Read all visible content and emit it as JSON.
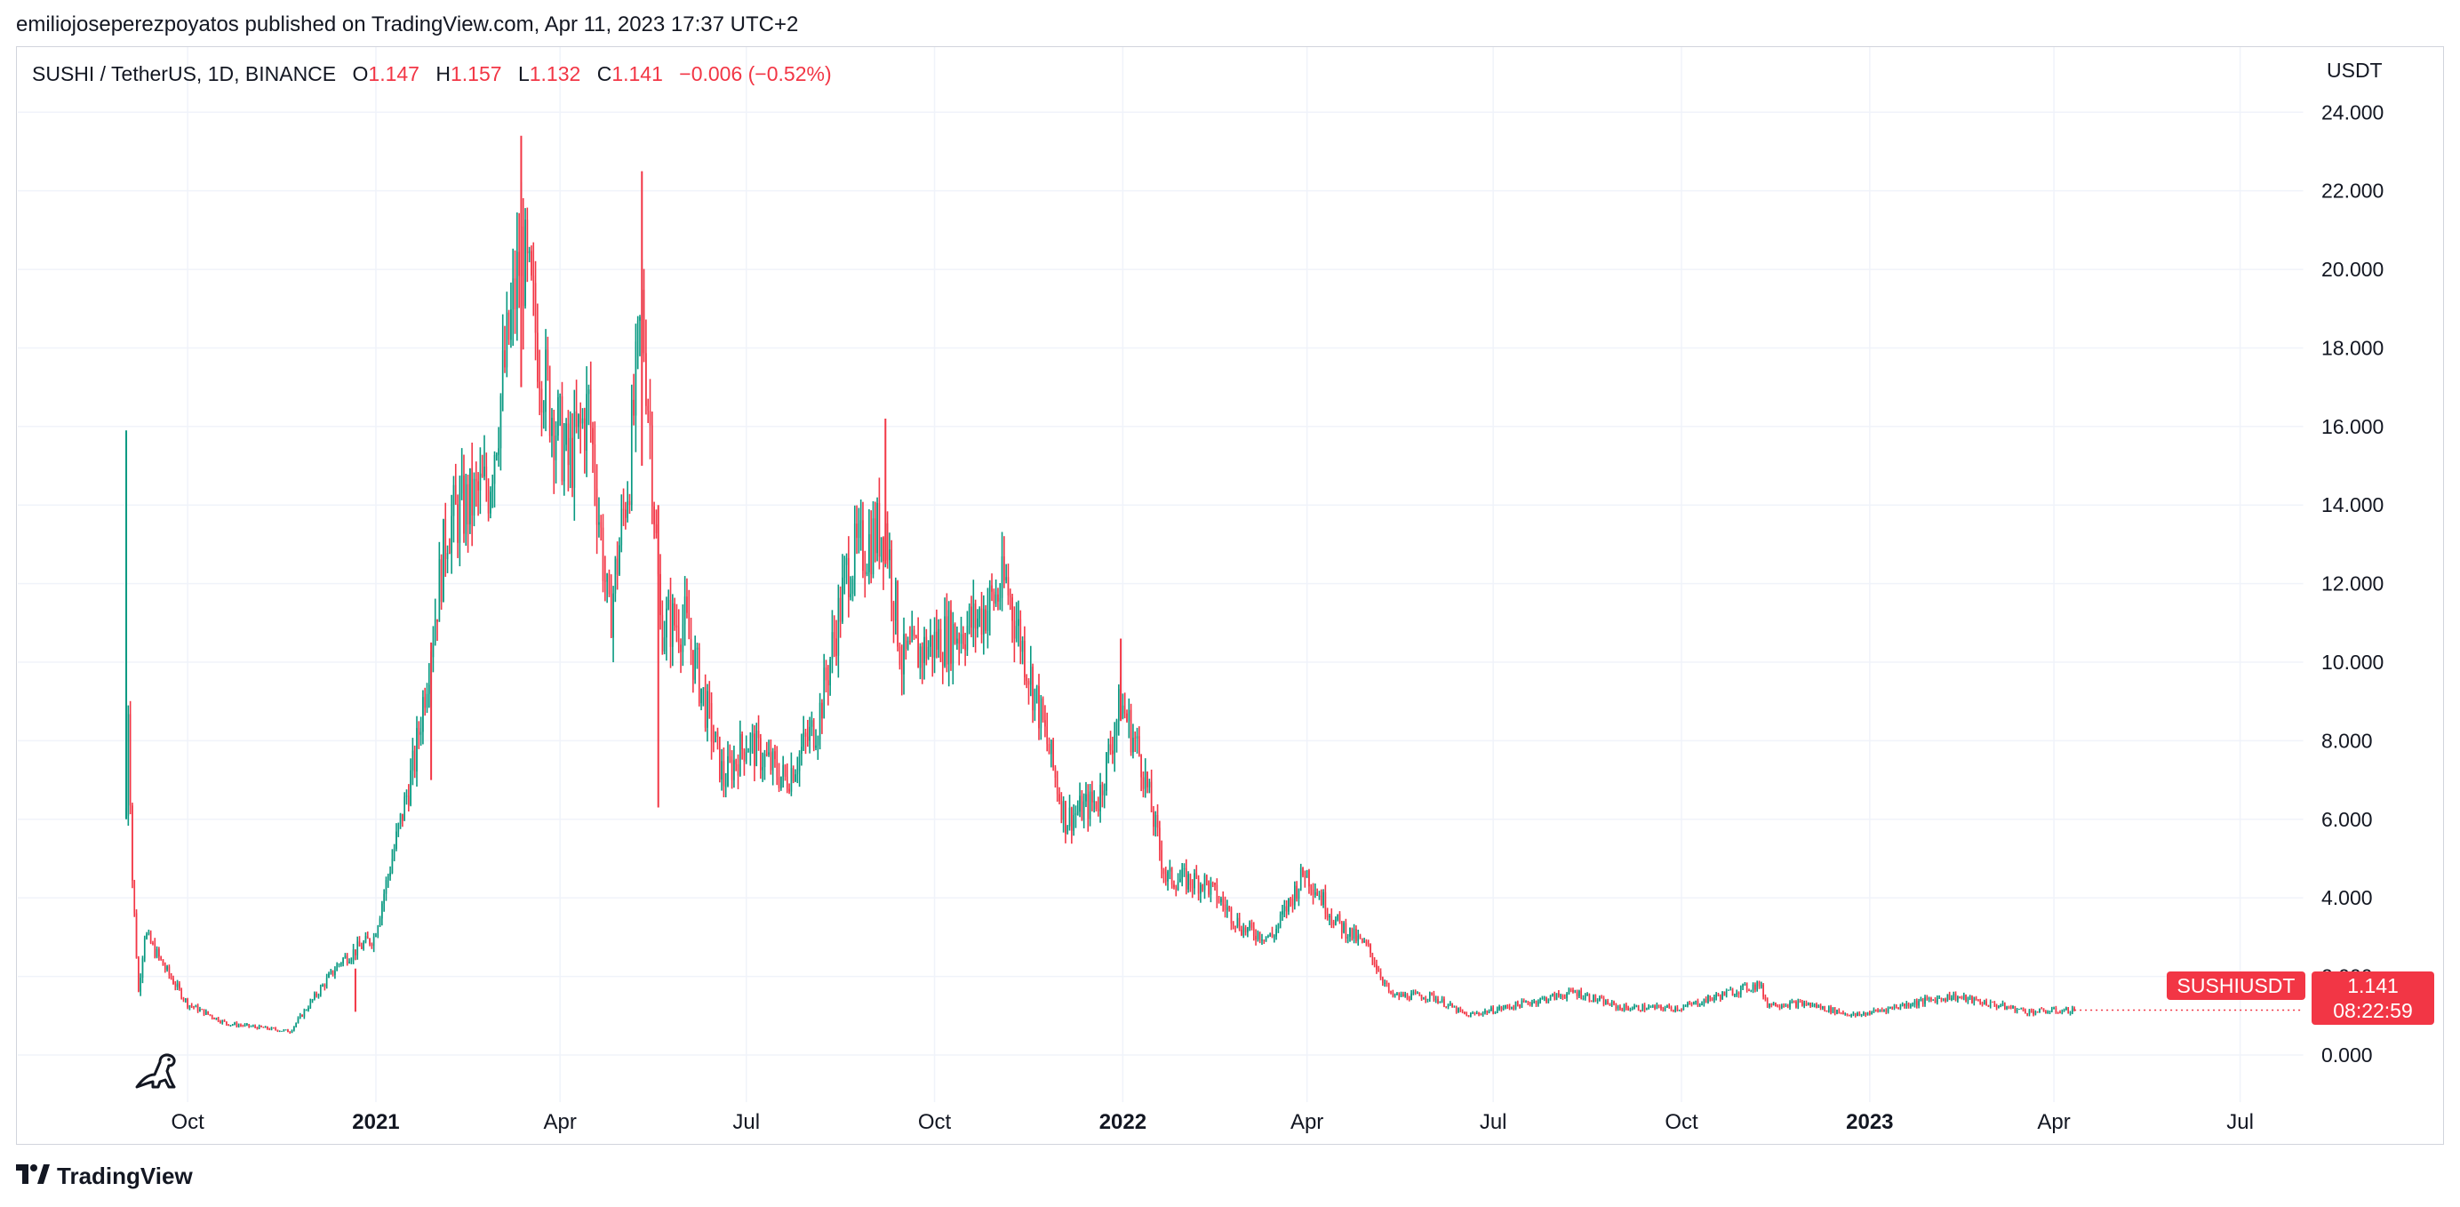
{
  "header": {
    "published_by": "emiliojoseperezpoyatos published on TradingView.com, Apr 11, 2023 17:37 UTC+2"
  },
  "legend": {
    "symbol": "SUSHI / TetherUS, 1D, BINANCE",
    "open_label": "O",
    "open": "1.147",
    "high_label": "H",
    "high": "1.157",
    "low_label": "L",
    "low": "1.132",
    "close_label": "C",
    "close": "1.141",
    "change": "−0.006 (−0.52%)"
  },
  "price_axis": {
    "unit": "USDT"
  },
  "price_tag": {
    "symbol": "SUSHIUSDT",
    "price": "1.141",
    "countdown": "08:22:59"
  },
  "footer": {
    "brand": "TradingView"
  },
  "colors": {
    "up": "#089981",
    "down": "#f23645",
    "grid": "#f0f3fa",
    "text": "#131722"
  },
  "icons": {
    "logo": "tradingview-logo-icon",
    "replay": "dinosaur-icon"
  },
  "chart_data": {
    "type": "candlestick",
    "title": "SUSHI / TetherUS, 1D, BINANCE",
    "ylabel": "USDT",
    "ylim": [
      -1.2,
      25.5
    ],
    "y_ticks": [
      "0.000",
      "2.000",
      "4.000",
      "6.000",
      "8.000",
      "10.000",
      "12.000",
      "14.000",
      "16.000",
      "18.000",
      "20.000",
      "22.000",
      "24.000"
    ],
    "y_tick_values": [
      0,
      2,
      4,
      6,
      8,
      10,
      12,
      14,
      16,
      18,
      20,
      22,
      24
    ],
    "x_ticks": [
      {
        "label": "Oct",
        "date": "2020-10-01",
        "bold": false
      },
      {
        "label": "2021",
        "date": "2021-01-01",
        "bold": true
      },
      {
        "label": "Apr",
        "date": "2021-04-01",
        "bold": false
      },
      {
        "label": "Jul",
        "date": "2021-07-01",
        "bold": false
      },
      {
        "label": "Oct",
        "date": "2021-10-01",
        "bold": false
      },
      {
        "label": "2022",
        "date": "2022-01-01",
        "bold": true
      },
      {
        "label": "Apr",
        "date": "2022-04-01",
        "bold": false
      },
      {
        "label": "Jul",
        "date": "2022-07-01",
        "bold": false
      },
      {
        "label": "Oct",
        "date": "2022-10-01",
        "bold": false
      },
      {
        "label": "2023",
        "date": "2023-01-01",
        "bold": true
      },
      {
        "label": "Apr",
        "date": "2023-04-01",
        "bold": false
      },
      {
        "label": "Jul",
        "date": "2023-07-01",
        "bold": false
      }
    ],
    "x_range": [
      "2020-07-10",
      "2023-08-01"
    ],
    "price_path": [
      [
        "2020-09-01",
        6.1
      ],
      [
        "2020-09-02",
        9.0
      ],
      [
        "2020-09-04",
        4.5
      ],
      [
        "2020-09-07",
        1.6
      ],
      [
        "2020-09-10",
        3.1
      ],
      [
        "2020-09-20",
        2.2
      ],
      [
        "2020-10-01",
        1.3
      ],
      [
        "2020-10-20",
        0.8
      ],
      [
        "2020-11-05",
        0.7
      ],
      [
        "2020-11-20",
        0.6
      ],
      [
        "2020-12-01",
        1.4
      ],
      [
        "2020-12-15",
        2.4
      ],
      [
        "2020-12-31",
        3.0
      ],
      [
        "2021-01-20",
        7.5
      ],
      [
        "2021-02-05",
        13.5
      ],
      [
        "2021-02-25",
        14.5
      ],
      [
        "2021-03-13",
        20.5
      ],
      [
        "2021-03-25",
        17.0
      ],
      [
        "2021-04-05",
        15.0
      ],
      [
        "2021-04-15",
        16.5
      ],
      [
        "2021-04-25",
        11.0
      ],
      [
        "2021-05-05",
        15.0
      ],
      [
        "2021-05-11",
        19.0
      ],
      [
        "2021-05-15",
        16.0
      ],
      [
        "2021-05-20",
        11.0
      ],
      [
        "2021-06-01",
        11.0
      ],
      [
        "2021-06-20",
        7.0
      ],
      [
        "2021-07-01",
        8.0
      ],
      [
        "2021-07-20",
        7.0
      ],
      [
        "2021-08-05",
        8.5
      ],
      [
        "2021-08-20",
        12.5
      ],
      [
        "2021-09-07",
        13.5
      ],
      [
        "2021-09-15",
        10.0
      ],
      [
        "2021-10-01",
        10.5
      ],
      [
        "2021-10-20",
        11.0
      ],
      [
        "2021-11-05",
        12.0
      ],
      [
        "2021-11-20",
        9.0
      ],
      [
        "2021-12-04",
        6.0
      ],
      [
        "2021-12-20",
        6.5
      ],
      [
        "2021-12-31",
        9.0
      ],
      [
        "2022-01-10",
        7.5
      ],
      [
        "2022-01-22",
        4.5
      ],
      [
        "2022-02-10",
        4.4
      ],
      [
        "2022-03-01",
        3.2
      ],
      [
        "2022-03-15",
        3.0
      ],
      [
        "2022-03-31",
        4.7
      ],
      [
        "2022-04-15",
        3.4
      ],
      [
        "2022-05-01",
        2.7
      ],
      [
        "2022-05-12",
        1.5
      ],
      [
        "2022-06-01",
        1.5
      ],
      [
        "2022-06-18",
        1.0
      ],
      [
        "2022-07-15",
        1.3
      ],
      [
        "2022-08-10",
        1.6
      ],
      [
        "2022-09-01",
        1.2
      ],
      [
        "2022-10-01",
        1.2
      ],
      [
        "2022-10-25",
        1.6
      ],
      [
        "2022-11-08",
        1.8
      ],
      [
        "2022-11-12",
        1.3
      ],
      [
        "2022-12-01",
        1.3
      ],
      [
        "2022-12-25",
        1.0
      ],
      [
        "2023-01-20",
        1.3
      ],
      [
        "2023-02-10",
        1.5
      ],
      [
        "2023-03-01",
        1.3
      ],
      [
        "2023-03-20",
        1.1
      ],
      [
        "2023-04-11",
        1.141
      ]
    ],
    "spikes": [
      [
        "2020-09-01",
        15.9,
        6.0
      ],
      [
        "2021-01-28",
        10.5,
        7.0
      ],
      [
        "2021-03-13",
        23.4,
        17.0
      ],
      [
        "2021-05-11",
        22.5,
        15.0
      ],
      [
        "2021-05-19",
        14.0,
        6.3
      ],
      [
        "2021-09-07",
        16.2,
        12.5
      ],
      [
        "2021-12-31",
        10.6,
        8.5
      ],
      [
        "2020-12-22",
        2.2,
        1.1
      ]
    ],
    "last": {
      "open": 1.147,
      "high": 1.157,
      "low": 1.132,
      "close": 1.141,
      "change": -0.006,
      "change_pct": -0.52
    }
  }
}
